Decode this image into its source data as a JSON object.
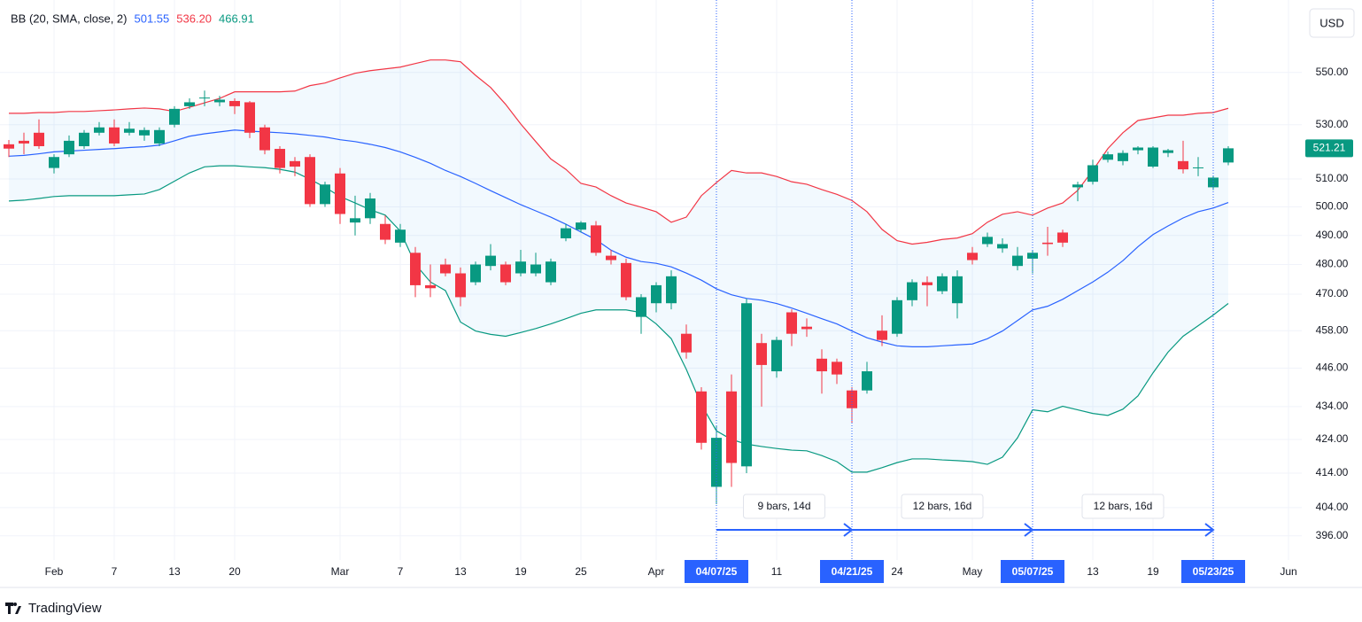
{
  "chart_data": {
    "type": "candlestick",
    "indicator": "BB (20, SMA, close, 2)",
    "currency": "USD",
    "branding": "TradingView",
    "log_scale": true,
    "grid": true,
    "up_color": "#089981",
    "down_color": "#f23645",
    "band_fill": "rgba(33,150,243,0.06)",
    "range_color": "#2962ff",
    "ylim": [
      391,
      579
    ],
    "yticks": [
      {
        "value": 550,
        "label": "550.00"
      },
      {
        "value": 530,
        "label": "530.00"
      },
      {
        "value": 510,
        "label": "510.00"
      },
      {
        "value": 500,
        "label": "500.00"
      },
      {
        "value": 490,
        "label": "490.00"
      },
      {
        "value": 480,
        "label": "480.00"
      },
      {
        "value": 470,
        "label": "470.00"
      },
      {
        "value": 458,
        "label": "458.00"
      },
      {
        "value": 446,
        "label": "446.00"
      },
      {
        "value": 434,
        "label": "434.00"
      },
      {
        "value": 424,
        "label": "424.00"
      },
      {
        "value": 414,
        "label": "414.00"
      },
      {
        "value": 404,
        "label": "404.00"
      },
      {
        "value": 396,
        "label": "396.00"
      }
    ],
    "categories": [
      null,
      null,
      null,
      "Feb",
      null,
      null,
      null,
      "7",
      null,
      null,
      null,
      "13",
      null,
      null,
      null,
      "20",
      null,
      null,
      null,
      null,
      null,
      null,
      "Mar",
      null,
      null,
      null,
      "7",
      null,
      null,
      null,
      "13",
      null,
      null,
      null,
      "19",
      null,
      null,
      null,
      "25",
      null,
      null,
      null,
      null,
      "Apr",
      null,
      null,
      null,
      "04/07/25",
      null,
      null,
      null,
      "11",
      null,
      null,
      null,
      null,
      "04/21/25",
      null,
      null,
      "24",
      null,
      null,
      null,
      null,
      "May",
      null,
      null,
      null,
      "05/07/25",
      null,
      null,
      null,
      "13",
      null,
      null,
      null,
      "19",
      null,
      null,
      null,
      "05/23/25",
      null,
      null,
      null,
      null,
      "Jun"
    ],
    "open": [
      522.7,
      524,
      527,
      514,
      519,
      522,
      527,
      529,
      527,
      526,
      523,
      530,
      537,
      540,
      538.5,
      539,
      538.5,
      529,
      521,
      516.5,
      518,
      501,
      512,
      494.5,
      496,
      494,
      487.5,
      484,
      473,
      480,
      477,
      474,
      479.5,
      480,
      477,
      477,
      474,
      489,
      492,
      493.5,
      483,
      480.5,
      462.5,
      467,
      467,
      457,
      438.7,
      410,
      438.7,
      416,
      454,
      445,
      464,
      459.3,
      449,
      448,
      439,
      439,
      458,
      457,
      468,
      474,
      471,
      467,
      484,
      487,
      485.5,
      479.5,
      482,
      487.5,
      491,
      507,
      509,
      517,
      516.5,
      520.5,
      514.5,
      519.5,
      516.5,
      514,
      507,
      516,
      null,
      null,
      null,
      null
    ],
    "high": [
      524.3,
      527,
      532,
      519,
      526,
      528,
      531,
      532,
      531,
      529,
      529,
      537,
      540,
      543,
      541,
      540,
      539,
      530,
      522,
      518,
      519,
      509,
      514,
      504,
      505,
      497,
      494,
      486,
      480,
      482,
      479,
      481,
      487,
      481,
      485,
      484,
      482,
      494,
      495,
      495,
      485,
      482,
      470,
      474,
      478,
      460,
      440,
      428,
      444,
      468.5,
      457,
      456,
      465,
      462,
      452,
      449,
      440,
      448,
      463,
      469,
      475,
      476,
      477,
      478,
      486,
      491,
      489,
      486,
      485,
      493,
      492,
      509,
      517,
      520,
      520.5,
      522,
      522,
      521,
      524,
      518,
      511,
      522,
      null,
      null,
      null,
      null
    ],
    "low": [
      518,
      519,
      521,
      512,
      518,
      521,
      526,
      522,
      526,
      524,
      522,
      529,
      536,
      537,
      537,
      534,
      525,
      519,
      512,
      511,
      500,
      500,
      494,
      490,
      494,
      487,
      486,
      469,
      469,
      476,
      466,
      473,
      478,
      473,
      476,
      476,
      473,
      488,
      491,
      483,
      480,
      468,
      457,
      464,
      465,
      449,
      421,
      405,
      410,
      414,
      434,
      443,
      453,
      456,
      438,
      441,
      429,
      438,
      453,
      456,
      466,
      466,
      470,
      462,
      480,
      486,
      484,
      478,
      477,
      483,
      486,
      502,
      508,
      516,
      515,
      519,
      514,
      518,
      512,
      511,
      506,
      515,
      null,
      null,
      null,
      null
    ],
    "close": [
      521.1,
      523,
      522,
      518,
      524,
      527,
      529,
      523,
      528.5,
      528,
      528,
      536,
      538.5,
      540.3,
      539.5,
      537,
      527,
      520.5,
      514,
      514.5,
      501,
      508,
      497.5,
      496,
      503,
      488.5,
      492,
      473,
      472,
      477,
      469,
      480,
      483,
      474,
      481,
      480,
      481,
      492.5,
      494.5,
      484,
      481.5,
      469,
      469,
      473,
      476,
      451,
      423,
      424.5,
      417,
      467,
      447,
      455,
      457,
      458.5,
      445,
      444,
      433.5,
      445,
      455,
      468,
      474,
      473,
      476,
      476,
      481.5,
      489.5,
      487,
      483,
      484,
      487,
      487.5,
      508,
      515,
      519,
      519.5,
      521.5,
      521.5,
      520.5,
      513.5,
      514.2,
      510.5,
      521.21,
      null,
      null,
      null,
      null
    ],
    "series": [
      {
        "color": "#2962ff",
        "last_label": "501.55",
        "values": [
          518.3,
          518.6,
          519.2,
          519.9,
          520.2,
          520.5,
          520.8,
          521.1,
          521.5,
          521.8,
          522.4,
          524.0,
          525.7,
          526.6,
          527.3,
          528.0,
          527.6,
          527.3,
          527.0,
          526.6,
          526.0,
          525.4,
          524.4,
          523.7,
          522.7,
          521.5,
          519.9,
          517.9,
          515.7,
          513.1,
          510.9,
          508.4,
          505.8,
          503.3,
          500.8,
          498.6,
          496.4,
          493.9,
          491.2,
          488.5,
          484.9,
          482.5,
          481.0,
          480.4,
          479.2,
          477.1,
          474.7,
          471.8,
          469.8,
          468.6,
          468.0,
          466.9,
          465.4,
          463.7,
          461.9,
          460.2,
          457.9,
          455.7,
          454.3,
          453.1,
          452.8,
          452.8,
          453.1,
          453.4,
          453.7,
          455.4,
          457.9,
          461.3,
          464.8,
          466.0,
          468.3,
          471.2,
          474.1,
          477.4,
          481.3,
          486.1,
          490.3,
          493.3,
          496.1,
          498.3,
          499.6,
          501.55,
          null,
          null,
          null,
          null
        ]
      },
      {
        "color": "#f23645",
        "last_label": "536.20",
        "values": [
          534.3,
          534.3,
          534.6,
          534.6,
          535.0,
          535.0,
          535.3,
          535.6,
          536.0,
          536.3,
          536.0,
          535.0,
          536.6,
          538.3,
          540.0,
          542.5,
          542.5,
          542.5,
          542.5,
          542.8,
          544.9,
          545.9,
          547.9,
          549.7,
          550.7,
          551.4,
          552.1,
          553.5,
          554.9,
          554.9,
          554.2,
          548.9,
          544.2,
          537.7,
          530.3,
          523.7,
          517.3,
          513.5,
          508.4,
          507.1,
          504.0,
          501.4,
          499.9,
          498.3,
          494.6,
          496.4,
          504.0,
          508.7,
          513.1,
          512.2,
          512.2,
          510.9,
          509.0,
          508.1,
          506.2,
          504.5,
          502.3,
          498.3,
          492.1,
          488.2,
          487.0,
          487.6,
          488.6,
          489.1,
          490.6,
          494.6,
          497.4,
          498.3,
          497.1,
          499.6,
          501.4,
          505.9,
          513.1,
          521.1,
          527.0,
          531.6,
          532.6,
          533.6,
          533.6,
          534.3,
          534.6,
          536.2,
          null,
          null,
          null,
          null
        ]
      },
      {
        "color": "#089981",
        "last_label": "466.91",
        "values": [
          502.1,
          502.4,
          503.0,
          503.7,
          504.0,
          504.0,
          504.0,
          504.0,
          504.3,
          504.6,
          506.2,
          509.2,
          512.2,
          514.4,
          514.8,
          514.8,
          514.4,
          514.1,
          513.5,
          512.5,
          509.9,
          507.0,
          503.7,
          501.4,
          499.0,
          497.1,
          491.5,
          480.1,
          474.1,
          471.2,
          460.8,
          457.9,
          456.8,
          456.2,
          457.4,
          458.7,
          460.2,
          461.9,
          463.7,
          464.8,
          464.8,
          464.8,
          463.9,
          460.2,
          455.4,
          445.6,
          434.6,
          426.6,
          424.0,
          422.6,
          421.9,
          421.3,
          420.8,
          420.6,
          419.2,
          417.4,
          414.3,
          414.3,
          415.6,
          417.1,
          418.2,
          418.2,
          417.9,
          417.7,
          417.4,
          416.6,
          418.7,
          424.5,
          433.0,
          432.4,
          434.1,
          433.0,
          431.9,
          431.3,
          433.2,
          437.3,
          444.5,
          451.1,
          456.2,
          459.6,
          463.1,
          466.91,
          null,
          null,
          null,
          null
        ]
      }
    ],
    "ranges": [
      {
        "start": "04/07/25",
        "end": "04/21/25",
        "label": "9 bars, 14d"
      },
      {
        "start": "04/21/25",
        "end": "05/07/25",
        "label": "12 bars, 16d"
      },
      {
        "start": "05/07/25",
        "end": "05/23/25",
        "label": "12 bars, 16d"
      }
    ]
  }
}
